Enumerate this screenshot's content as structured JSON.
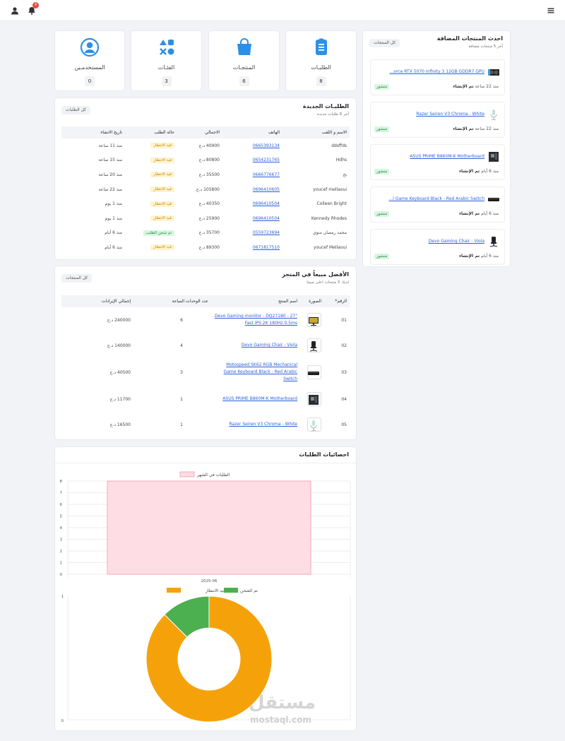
{
  "header": {
    "notification_count": "4"
  },
  "stats": [
    {
      "label": "الطلبـات",
      "value": "8",
      "icon": "clipboard-icon"
    },
    {
      "label": "المنتجـات",
      "value": "6",
      "icon": "shopping-bag-icon"
    },
    {
      "label": "الفئـات",
      "value": "3",
      "icon": "shapes-icon"
    },
    {
      "label": "المستخدمـين",
      "value": "0",
      "icon": "user-circle-icon"
    }
  ],
  "new_orders": {
    "title": "الطلبـات الجديدة",
    "subtitle": "آخر 8 طلبات جديدة",
    "button": "كل الطلبات",
    "columns": [
      "الاسم و اللقب",
      "الهاتف",
      "الاجمالي",
      "حالة الطلب",
      "تاريخ الانشاء"
    ],
    "rows": [
      {
        "name": "ddsffds",
        "phone": "0665393134",
        "total": "40900 د.ج",
        "status": "قيد الانتظار",
        "date": "منذ 11 ساعة"
      },
      {
        "name": "Hdhs",
        "phone": "0654231765",
        "total": "80800 د.ج",
        "status": "قيد الانتظار",
        "date": "منذ 15 ساعة"
      },
      {
        "name": "تخ",
        "phone": "0666776677",
        "total": "35500 د.ج",
        "status": "قيد الانتظار",
        "date": "منذ 20 ساعة"
      },
      {
        "name": "youcef mellaoui",
        "phone": "0696410605",
        "total": "105800 د.ج",
        "status": "قيد الانتظار",
        "date": "منذ 22 ساعة"
      },
      {
        "name": "Colleen Bright",
        "phone": "0696410504",
        "total": "40350 د.ج",
        "status": "قيد الانتظار",
        "date": "منذ 1 يوم"
      },
      {
        "name": "Kennedy Rhodes",
        "phone": "0696410504",
        "total": "25900 د.ج",
        "status": "قيد الانتظار",
        "date": "منذ 1 يوم"
      },
      {
        "name": "محمد رمضان منوي",
        "phone": "0559723694",
        "total": "35700 د.ج",
        "status": "تم شحن الطلب",
        "date": "منذ 6 أيام"
      },
      {
        "name": "youcef Mellaoui",
        "phone": "0671817510",
        "total": "89300 د.ج",
        "status": "قيد الانتظار",
        "date": "منذ 6 أيام"
      }
    ]
  },
  "best_sellers": {
    "title": "الأفضل مبيعاً في المتجر",
    "subtitle": "لديك 5 منتجات اعلى مبيعا",
    "button": "كل المنتجات",
    "columns": [
      "الرقم*",
      "الصورة",
      "اسم المنتج",
      "عدد الوحدات المباعة",
      "إجمالي الإيرادات"
    ],
    "rows": [
      {
        "rank": "01",
        "name": "Devo Gaming monitor - DQ27180 - 27\" Fast IPS 2K 180Hz 0.5ms",
        "units": "6",
        "revenue": "240000 د.ج",
        "thumb": "monitor-thumb"
      },
      {
        "rank": "02",
        "name": "Devo Gaming Chair - Viola",
        "units": "4",
        "revenue": "140000 د.ج",
        "thumb": "chair-thumb"
      },
      {
        "rank": "03",
        "name": "Motospeed SK62 RGB Mechanical Game Keyboard Black - Red Arabic Switch",
        "units": "3",
        "revenue": "40500 د.ج",
        "thumb": "keyboard-thumb"
      },
      {
        "rank": "04",
        "name": "ASUS PRIME B860M-K Motherboard",
        "units": "1",
        "revenue": "11700 د.ج",
        "thumb": "motherboard-thumb"
      },
      {
        "rank": "05",
        "name": "Razer Seiren V3 Chroma - White",
        "units": "1",
        "revenue": "16500 د.ج",
        "thumb": "microphone-thumb"
      }
    ]
  },
  "latest_products": {
    "title": "احدث المنتجات المضافة",
    "subtitle": "آخر 5 منتجات مضافة",
    "button": "كل المنتجات",
    "created_label": "تم الإنشاء",
    "items": [
      {
        "name": "...orce RTX 5070 Infinity 3 12GB GDDR7 GPU",
        "date": "منذ 22 ساعة",
        "status": "منشور",
        "thumb": "gpu-thumb"
      },
      {
        "name": "Razer Seiren V3 Chroma - White",
        "date": "منذ 22 ساعة",
        "status": "منشور",
        "thumb": "microphone-thumb"
      },
      {
        "name": "ASUS PRIME B860M-K Motherboard",
        "date": "منذ 6 أيام",
        "status": "منشور",
        "thumb": "motherboard-thumb"
      },
      {
        "name": "...l Game Keyboard Black - Red Arabic Switch",
        "date": "منذ 6 أيام",
        "status": "منشور",
        "thumb": "keyboard-thumb"
      },
      {
        "name": "Devo Gaming Chair - Viola",
        "date": "منذ 6 أيام",
        "status": "منشور",
        "thumb": "chair-thumb"
      }
    ]
  },
  "order_stats": {
    "title": "احصائيات الطلبات"
  },
  "chart_data": [
    {
      "type": "bar",
      "categories": [
        "2025-06"
      ],
      "series": [
        {
          "name": "الطلبات في الشهر",
          "values": [
            8
          ]
        }
      ],
      "ylim": [
        0,
        8
      ],
      "yticks": [
        "0",
        "1",
        "2",
        "3",
        "4",
        "5",
        "6",
        "7",
        "8"
      ],
      "legend": "top",
      "grid": true,
      "colors": {
        "fill": "#ffdde4",
        "stroke": "#f39aaa"
      }
    },
    {
      "type": "pie",
      "donut": true,
      "labels": [
        "قيد الانتظار",
        "تم الشحن"
      ],
      "values": [
        7,
        1
      ],
      "colors": [
        "#f5a20a",
        "#4caf50"
      ],
      "yticks": [
        "0",
        "1"
      ],
      "legend": "top"
    }
  ],
  "watermark": {
    "text": "مستقل",
    "domain": "mostaql.com"
  },
  "colors": {
    "accent": "#2e8fe6",
    "pending": "#c48a00",
    "shipped": "#1e8a3f"
  }
}
